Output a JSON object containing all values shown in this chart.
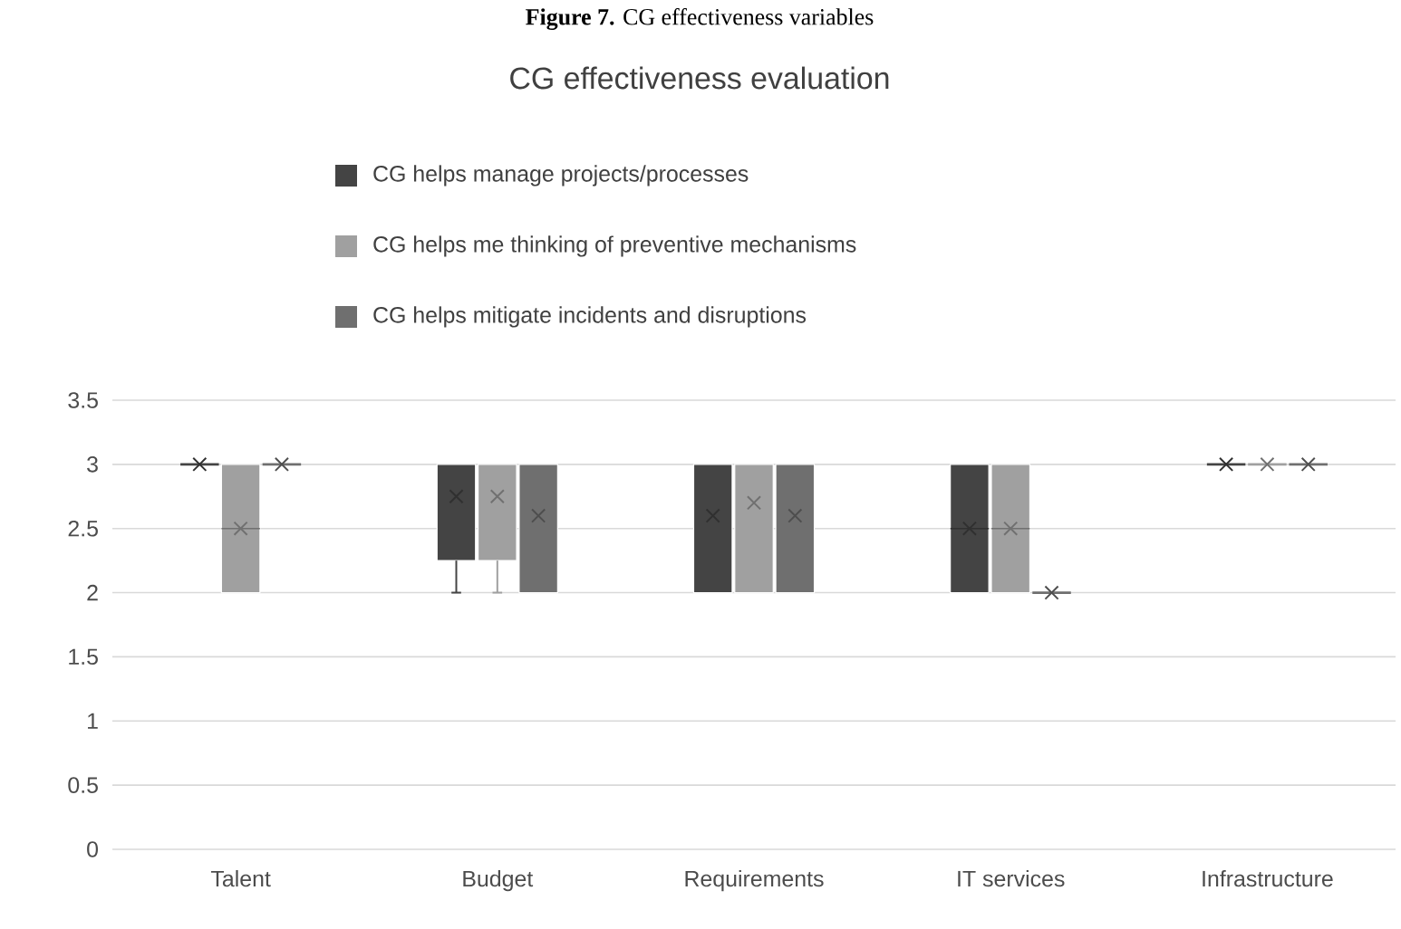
{
  "chart_data": {
    "type": "box",
    "title": "CG effectiveness evaluation",
    "annotations": [
      "**Figure 7.** CG effectiveness variables"
    ],
    "categories": [
      "Talent",
      "Budget",
      "Requirements",
      "IT services",
      "Infrastructure"
    ],
    "series": [
      {
        "name": "CG helps manage projects/processes",
        "color": "#444444",
        "boxes": [
          {
            "low": 3,
            "q1": 3,
            "median": 3,
            "q3": 3,
            "high": 3,
            "mean": 3
          },
          {
            "low": 2,
            "q1": 2.25,
            "median": 3,
            "q3": 3,
            "high": 3,
            "mean": 2.75
          },
          {
            "low": 2,
            "q1": 2,
            "median": 3,
            "q3": 3,
            "high": 3,
            "mean": 2.6
          },
          {
            "low": 2,
            "q1": 2,
            "median": 2.5,
            "q3": 3,
            "high": 3,
            "mean": 2.5
          },
          {
            "low": 3,
            "q1": 3,
            "median": 3,
            "q3": 3,
            "high": 3,
            "mean": 3
          }
        ]
      },
      {
        "name": "CG helps me thinking of preventive mechanisms",
        "color": "#a0a0a0",
        "boxes": [
          {
            "low": 2,
            "q1": 2,
            "median": 2.5,
            "q3": 3,
            "high": 3,
            "mean": 2.5
          },
          {
            "low": 2,
            "q1": 2.25,
            "median": 3,
            "q3": 3,
            "high": 3,
            "mean": 2.75
          },
          {
            "low": 2,
            "q1": 2,
            "median": 3,
            "q3": 3,
            "high": 3,
            "mean": 2.7
          },
          {
            "low": 2,
            "q1": 2,
            "median": 2.5,
            "q3": 3,
            "high": 3,
            "mean": 2.5
          },
          {
            "low": 3,
            "q1": 3,
            "median": 3,
            "q3": 3,
            "high": 3,
            "mean": 3
          }
        ]
      },
      {
        "name": "CG helps mitigate incidents and disruptions",
        "color": "#6f6f6f",
        "boxes": [
          {
            "low": 3,
            "q1": 3,
            "median": 3,
            "q3": 3,
            "high": 3,
            "mean": 3
          },
          {
            "low": 2,
            "q1": 2,
            "median": 3,
            "q3": 3,
            "high": 3,
            "mean": 2.6
          },
          {
            "low": 2,
            "q1": 2,
            "median": 3,
            "q3": 3,
            "high": 3,
            "mean": 2.6
          },
          {
            "low": 2,
            "q1": 2,
            "median": 2,
            "q3": 2,
            "high": 2,
            "mean": 2
          },
          {
            "low": 3,
            "q1": 3,
            "median": 3,
            "q3": 3,
            "high": 3,
            "mean": 3
          }
        ]
      }
    ],
    "ylim": [
      0,
      3.5
    ],
    "yticks": [
      0,
      0.5,
      1,
      1.5,
      2,
      2.5,
      3,
      3.5
    ],
    "grid": "y",
    "legend": "top",
    "marker": "cross"
  }
}
